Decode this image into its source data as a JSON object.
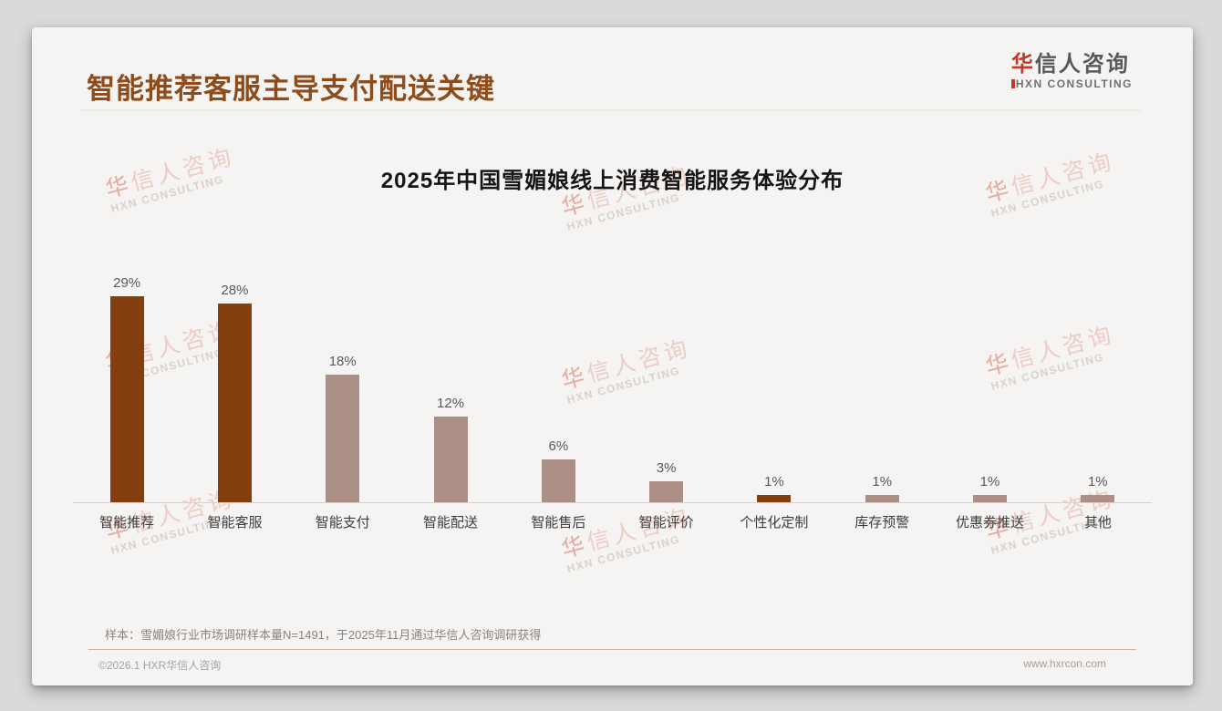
{
  "page": {
    "title": "智能推荐客服主导支付配送关键",
    "sample_note": "样本：雪媚娘行业市场调研样本量N=1491，于2025年11月通过华信人咨询调研获得",
    "copyright": "©2026.1 HXR华信人咨询",
    "website": "www.hxrcon.com"
  },
  "logo": {
    "cn_first": "华",
    "cn_rest": "信人咨询",
    "en": "XN CONSULTING"
  },
  "watermark": {
    "cn_first": "华",
    "cn_rest": "信人咨询",
    "en": "HXN CONSULTING"
  },
  "colors": {
    "title_brown": "#8e4c1c",
    "bar_dark": "#843f10",
    "bar_light": "#ac8f85",
    "logo_red": "#c5372a"
  },
  "chart_data": {
    "type": "bar",
    "title": "2025年中国雪媚娘线上消费智能服务体验分布",
    "categories": [
      "智能推荐",
      "智能客服",
      "智能支付",
      "智能配送",
      "智能售后",
      "智能评价",
      "个性化定制",
      "库存预警",
      "优惠券推送",
      "其他"
    ],
    "values": [
      29,
      28,
      18,
      12,
      6,
      3,
      1,
      1,
      1,
      1
    ],
    "value_labels": [
      "29%",
      "28%",
      "18%",
      "12%",
      "6%",
      "3%",
      "1%",
      "1%",
      "1%",
      "1%"
    ],
    "dark_bar_indexes": [
      0,
      1,
      6
    ],
    "xlabel": "",
    "ylabel": "",
    "ylim": [
      0,
      32
    ],
    "grid": false,
    "legend": false
  }
}
